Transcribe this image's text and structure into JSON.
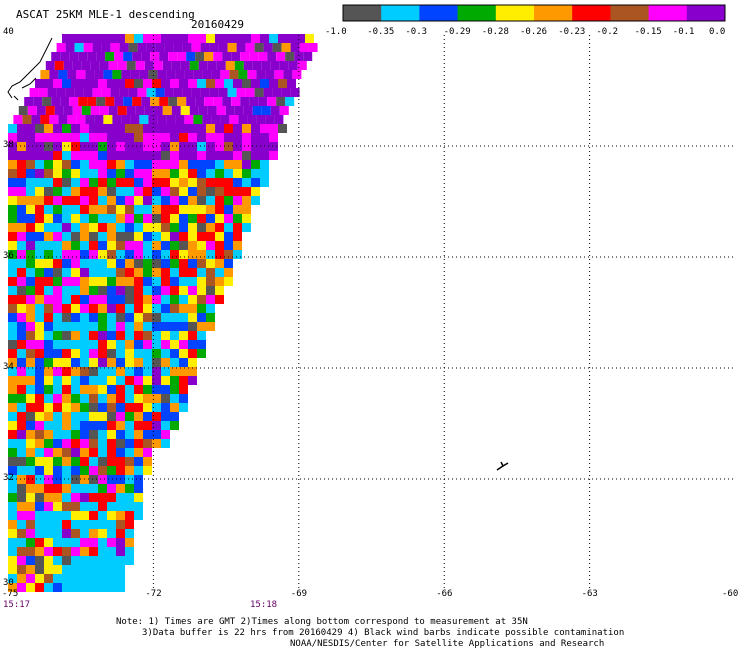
{
  "header": {
    "title": "ASCAT 25KM MLE-1 descending",
    "date": "20160429"
  },
  "colorbar": {
    "labels": [
      "-1.0",
      "-0.35",
      "-0.3",
      "-0.29",
      "-0.28",
      "-0.26",
      "-0.23",
      "-0.2",
      "-0.15",
      "-0.1",
      "0.0"
    ],
    "colors": [
      "#555555",
      "#00ccff",
      "#0044ff",
      "#00aa00",
      "#ffee00",
      "#ff9900",
      "#ff0000",
      "#aa5522",
      "#ff00ff",
      "#8800cc"
    ]
  },
  "axes": {
    "lon_labels": [
      "-75",
      "-72",
      "-69",
      "-66",
      "-63",
      "-60"
    ],
    "lat_labels": [
      "40",
      "38",
      "36",
      "34",
      "32",
      "30"
    ]
  },
  "times": [
    "15:17",
    "15:18"
  ],
  "notes": {
    "line1": "Note: 1) Times are GMT 2)Times along bottom correspond to measurement at 35N",
    "line2": "3)Data buffer is 22 hrs from 20160429 4) Black wind barbs indicate possible contamination",
    "line3": "NOAA/NESDIS/Center for Satellite Applications and Research"
  }
}
